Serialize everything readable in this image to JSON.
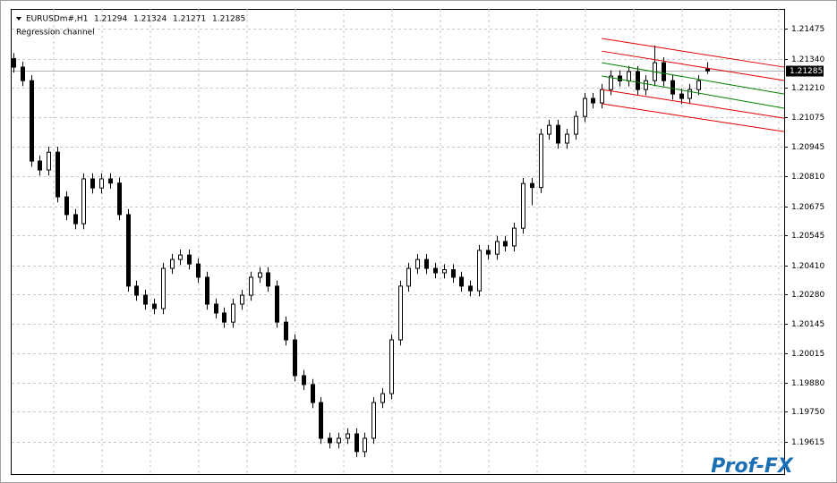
{
  "chart_data": {
    "type": "candlestick",
    "title": "EURUSDm#,H1",
    "info": [
      1.21294,
      1.21324,
      1.21271,
      1.21285
    ],
    "indicator": "Regression channel",
    "watermark": "Prof-FX",
    "current_price": 1.21285,
    "ylim": [
      1.1947,
      1.21564
    ],
    "yticks": [
      1.21475,
      {
        "value": 1.2134,
        "label": "1.21340"
      },
      {
        "value": 1.2121,
        "label": "1.21210"
      },
      1.21075,
      1.20945,
      {
        "value": 1.2081,
        "label": "1.20810"
      },
      1.20675,
      1.20545,
      {
        "value": 1.2041,
        "label": "1.20410"
      },
      {
        "value": 1.2028,
        "label": "1.20280"
      },
      1.20145,
      1.20015,
      {
        "value": 1.1988,
        "label": "1.19880"
      },
      {
        "value": 1.1975,
        "label": "1.19750"
      },
      1.19615
    ],
    "grid": true,
    "up_color": "#ffffff",
    "down_color": "#000000",
    "open": [
      1.2134,
      1.21302,
      1.21241,
      1.20879,
      1.20839,
      1.20919,
      1.20718,
      1.20638,
      1.20597,
      1.20799,
      1.20758,
      1.20799,
      1.2078,
      1.20638,
      1.20316,
      1.20275,
      1.20235,
      1.20215,
      1.20396,
      1.20436,
      1.20456,
      1.20416,
      1.20356,
      1.20235,
      1.20195,
      1.20154,
      1.20235,
      1.20275,
      1.20356,
      1.20376,
      1.20316,
      1.20154,
      1.20074,
      1.19913,
      1.19873,
      1.19792,
      1.19631,
      1.19611,
      1.19631,
      1.19651,
      1.19571,
      1.19631,
      1.19792,
      1.19832,
      1.20074,
      1.20316,
      1.20396,
      1.20436,
      1.20396,
      1.20376,
      1.2039,
      1.20356,
      1.20316,
      1.20295,
      1.20477,
      1.2046,
      1.20517,
      1.20497,
      1.20577,
      1.20778,
      1.2076,
      1.21,
      1.2104,
      1.2096,
      1.21,
      1.2108,
      1.21161,
      1.21141,
      1.21201,
      1.21262,
      1.2124,
      1.21282,
      1.21201,
      1.21241,
      1.21322,
      1.21241,
      1.21181,
      1.21161,
      1.21201,
      1.21294
    ],
    "high": [
      1.21365,
      1.21327,
      1.21266,
      1.20904,
      1.20944,
      1.20944,
      1.20743,
      1.20663,
      1.20824,
      1.20824,
      1.20824,
      1.20824,
      1.20805,
      1.20663,
      1.20341,
      1.203,
      1.2026,
      1.20421,
      1.20461,
      1.20481,
      1.20481,
      1.20441,
      1.20381,
      1.2026,
      1.2022,
      1.2026,
      1.203,
      1.20381,
      1.20401,
      1.20401,
      1.20341,
      1.20179,
      1.20099,
      1.19938,
      1.19898,
      1.19817,
      1.19656,
      1.19656,
      1.19676,
      1.19676,
      1.19656,
      1.19817,
      1.19857,
      1.20099,
      1.20341,
      1.20421,
      1.20461,
      1.20461,
      1.20421,
      1.20415,
      1.20415,
      1.20381,
      1.20341,
      1.20502,
      1.20502,
      1.20542,
      1.20542,
      1.20602,
      1.20803,
      1.20803,
      1.21025,
      1.21065,
      1.21065,
      1.21025,
      1.21105,
      1.21186,
      1.21186,
      1.21226,
      1.21287,
      1.21287,
      1.21307,
      1.21307,
      1.21266,
      1.214,
      1.21347,
      1.21266,
      1.21206,
      1.21226,
      1.21266,
      1.21324
    ],
    "low": [
      1.21277,
      1.21216,
      1.20854,
      1.20814,
      1.20814,
      1.20693,
      1.20613,
      1.20572,
      1.20572,
      1.20733,
      1.20733,
      1.20755,
      1.20613,
      1.20291,
      1.2025,
      1.2021,
      1.2019,
      1.2019,
      1.20371,
      1.20411,
      1.20391,
      1.20331,
      1.2021,
      1.2017,
      1.20129,
      1.20129,
      1.2021,
      1.2025,
      1.20331,
      1.20291,
      1.20129,
      1.20049,
      1.19888,
      1.19848,
      1.19767,
      1.19606,
      1.19586,
      1.19586,
      1.19606,
      1.19546,
      1.19546,
      1.19606,
      1.19767,
      1.19807,
      1.20049,
      1.20291,
      1.20371,
      1.20371,
      1.20351,
      1.20351,
      1.20331,
      1.20291,
      1.2027,
      1.2027,
      1.20435,
      1.20435,
      1.20472,
      1.20472,
      1.20552,
      1.2068,
      1.20735,
      1.20975,
      1.20935,
      1.20935,
      1.20975,
      1.21055,
      1.21116,
      1.21116,
      1.21176,
      1.21215,
      1.21215,
      1.21176,
      1.21176,
      1.21216,
      1.21216,
      1.21156,
      1.21136,
      1.21136,
      1.21176,
      1.21271
    ],
    "close": [
      1.21302,
      1.21241,
      1.20879,
      1.20839,
      1.20919,
      1.20718,
      1.20638,
      1.20597,
      1.20799,
      1.20758,
      1.20799,
      1.2078,
      1.20638,
      1.20316,
      1.20275,
      1.20235,
      1.20215,
      1.20396,
      1.20436,
      1.20456,
      1.20416,
      1.20356,
      1.20235,
      1.20195,
      1.20154,
      1.20235,
      1.20275,
      1.20356,
      1.20376,
      1.20316,
      1.20154,
      1.20074,
      1.19913,
      1.19873,
      1.19792,
      1.19631,
      1.19611,
      1.19631,
      1.19651,
      1.19571,
      1.19631,
      1.19792,
      1.19832,
      1.20074,
      1.20316,
      1.20396,
      1.20436,
      1.20396,
      1.20376,
      1.2039,
      1.20356,
      1.20316,
      1.20295,
      1.20477,
      1.2046,
      1.20517,
      1.20497,
      1.20577,
      1.20778,
      1.2076,
      1.21,
      1.2104,
      1.2096,
      1.21,
      1.2108,
      1.21161,
      1.21141,
      1.21201,
      1.21262,
      1.2124,
      1.21282,
      1.21201,
      1.21241,
      1.21322,
      1.21241,
      1.21181,
      1.21161,
      1.21201,
      1.21241,
      1.21285
    ],
    "channel": [
      {
        "color": "#e00000",
        "x": [
          67,
          88
        ],
        "values": [
          1.21431,
          1.21302
        ]
      },
      {
        "color": "#e00000",
        "x": [
          67,
          88
        ],
        "values": [
          1.21374,
          1.21242
        ]
      },
      {
        "color": "#008000",
        "x": [
          67,
          88
        ],
        "values": [
          1.21322,
          1.21181
        ]
      },
      {
        "color": "#008000",
        "x": [
          67,
          88
        ],
        "values": [
          1.21262,
          1.21117
        ]
      },
      {
        "color": "#e00000",
        "x": [
          67,
          88
        ],
        "values": [
          1.21201,
          1.21072
        ]
      },
      {
        "color": "#e00000",
        "x": [
          67,
          88
        ],
        "values": [
          1.21137,
          1.21012
        ]
      }
    ]
  }
}
